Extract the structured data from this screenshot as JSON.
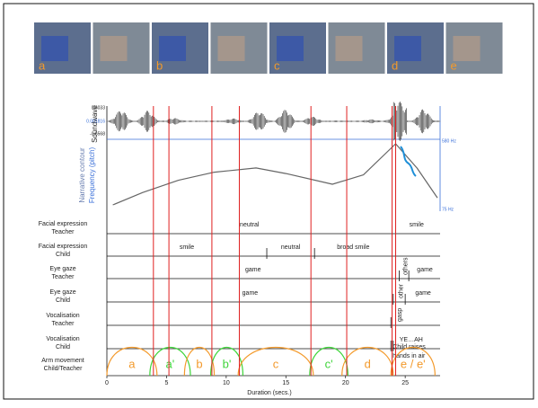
{
  "figure": {
    "frames": {
      "labels": [
        "a",
        null,
        "b",
        null,
        "c",
        null,
        "d",
        "e"
      ]
    },
    "soundwave": {
      "title": "Soundwave",
      "labels": [
        "0.6033",
        "0.001816",
        "-0.6568"
      ]
    },
    "pitch": {
      "title": [
        "Narrative contour",
        "Frequency (pitch)"
      ],
      "ylim": [
        75,
        580
      ],
      "yticks": [
        {
          "value": 580,
          "label": "580 Hz"
        },
        {
          "value": 75,
          "label": "75 Hz"
        }
      ],
      "x": [
        0.5,
        3,
        6,
        9,
        12.5,
        15,
        18.9,
        21.5,
        24.2,
        26,
        27.7
      ],
      "values": [
        108,
        200,
        290,
        350,
        381,
        340,
        261,
        330,
        560,
        380,
        161
      ]
    },
    "boundaries": [
      3.9,
      5.2,
      8.8,
      11.1,
      17.1,
      20.1,
      23.9,
      24.2
    ],
    "tiers": [
      {
        "name": [
          "Facial expression",
          "Teacher"
        ],
        "segments": [
          {
            "label": "neutral",
            "start": 0,
            "end": 23.9
          },
          {
            "label": "smile",
            "start": 23.9,
            "end": 28
          }
        ]
      },
      {
        "name": [
          "Facial expression",
          "Child"
        ],
        "segments": [
          {
            "label": "smile",
            "start": 0,
            "end": 13.4
          },
          {
            "label": "neutral",
            "start": 13.4,
            "end": 17.4
          },
          {
            "label": "broad smile",
            "start": 17.4,
            "end": 23.9
          }
        ]
      },
      {
        "name": [
          "Eye gaze",
          "Teacher"
        ],
        "segments": [
          {
            "label": "game",
            "start": 0,
            "end": 24.5
          },
          {
            "label": "others",
            "start": 24.5,
            "end": 25.3
          },
          {
            "label": "game",
            "start": 25.3,
            "end": 28
          }
        ]
      },
      {
        "name": [
          "Eye gaze",
          "Child"
        ],
        "segments": [
          {
            "label": "game",
            "start": 0,
            "end": 24
          },
          {
            "label": "other",
            "start": 24,
            "end": 25
          },
          {
            "label": "game",
            "start": 25,
            "end": 28
          }
        ]
      },
      {
        "name": [
          "Vocalisation",
          "Teacher"
        ],
        "segments": [
          {
            "label": "gasp",
            "start": 23.8,
            "end": 25
          }
        ]
      },
      {
        "name": [
          "Vocalisation",
          "Child"
        ],
        "segments": [
          {
            "label": "YE…AH",
            "start": 24,
            "end": 27
          },
          {
            "label": [
              "Child raises",
              "hands in air"
            ],
            "start": 23.8,
            "end": 28
          }
        ]
      }
    ],
    "arm": {
      "name": [
        "Arm movement",
        "Child/Teacher"
      ],
      "segments": [
        {
          "label": "a",
          "start": 0,
          "end": 4.2,
          "color": "#f39a2c"
        },
        {
          "label": "a'",
          "start": 3.6,
          "end": 7,
          "color": "#3fd43a"
        },
        {
          "label": "b",
          "start": 6.5,
          "end": 9,
          "color": "#f39a2c"
        },
        {
          "label": "b'",
          "start": 8.7,
          "end": 11.4,
          "color": "#3fd43a"
        },
        {
          "label": "c",
          "start": 11,
          "end": 17.3,
          "color": "#f39a2c"
        },
        {
          "label": "c'",
          "start": 17,
          "end": 20.2,
          "color": "#3fd43a"
        },
        {
          "label": "d",
          "start": 19.7,
          "end": 24,
          "color": "#f39a2c"
        },
        {
          "label": "e / e'",
          "start": 23.8,
          "end": 27.5,
          "color": "#f39a2c"
        }
      ]
    },
    "xaxis": {
      "title": "Duration (secs.)",
      "xlim": [
        0,
        28
      ],
      "xticks": [
        0,
        5,
        10,
        15,
        20,
        25
      ]
    }
  }
}
